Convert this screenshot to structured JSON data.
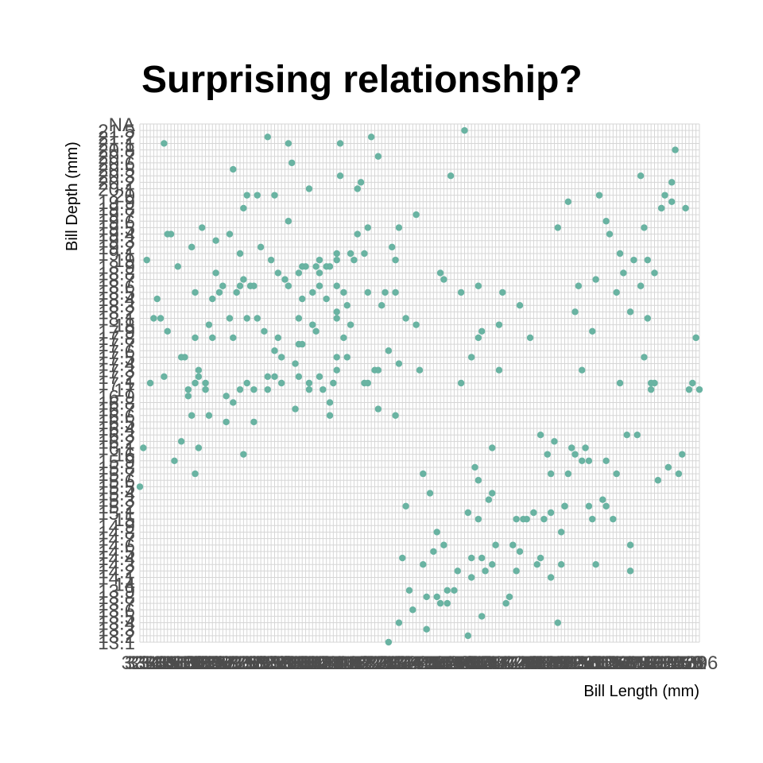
{
  "chart_data": {
    "type": "scatter",
    "title": "Surprising relationship?",
    "xlabel": "Bill Length (mm)",
    "ylabel": "Bill Depth (mm)",
    "point_color": "#69b3a2",
    "grid": "on",
    "x_axis_note": "discrete axis, one gridline per distinct bill length; labels overlap and are unreadable",
    "y_axis_note": "discrete axis, one gridline per distinct bill depth; labels overlap",
    "xlim": [
      32.1,
      59.6
    ],
    "y_ticks": [
      "13.1",
      "13.2",
      "13.3",
      "13.4",
      "13.5",
      "13.6",
      "13.7",
      "13.8",
      "13.9",
      "14",
      "14.1",
      "14.2",
      "14.3",
      "14.4",
      "14.5",
      "14.6",
      "14.7",
      "14.8",
      "14.9",
      "15",
      "15.1",
      "15.2",
      "15.3",
      "15.4",
      "15.5",
      "15.6",
      "15.7",
      "15.8",
      "15.9",
      "16",
      "16.1",
      "16.2",
      "16.3",
      "16.4",
      "16.5",
      "16.6",
      "16.7",
      "16.8",
      "16.9",
      "17",
      "17.1",
      "17.2",
      "17.3",
      "17.4",
      "17.5",
      "17.6",
      "17.7",
      "17.8",
      "17.9",
      "18",
      "18.1",
      "18.2",
      "18.3",
      "18.4",
      "18.5",
      "18.6",
      "18.7",
      "18.8",
      "18.9",
      "19",
      "19.1",
      "19.2",
      "19.3",
      "19.4",
      "19.5",
      "19.6",
      "19.7",
      "19.8",
      "19.9",
      "20",
      "20.1",
      "20.2",
      "20.3",
      "20.5",
      "20.6",
      "20.7",
      "20.8",
      "21.1",
      "21.2",
      "21.5",
      "NA"
    ],
    "x_tick_first": "32.1",
    "x_tick_last": "59.6",
    "points": [
      [
        32.1,
        15.5
      ],
      [
        33.1,
        16.1
      ],
      [
        33.5,
        19.0
      ],
      [
        34.0,
        17.1
      ],
      [
        34.1,
        18.1
      ],
      [
        34.4,
        18.4
      ],
      [
        34.5,
        18.1
      ],
      [
        34.6,
        21.1
      ],
      [
        34.6,
        17.2
      ],
      [
        35.0,
        17.9
      ],
      [
        35.0,
        19.4
      ],
      [
        35.1,
        19.4
      ],
      [
        35.2,
        15.9
      ],
      [
        35.3,
        18.9
      ],
      [
        35.5,
        16.2
      ],
      [
        35.5,
        17.5
      ],
      [
        35.6,
        17.5
      ],
      [
        35.7,
        16.9
      ],
      [
        35.7,
        17.0
      ],
      [
        35.9,
        16.6
      ],
      [
        35.9,
        19.2
      ],
      [
        36.0,
        15.7
      ],
      [
        36.0,
        17.1
      ],
      [
        36.0,
        17.8
      ],
      [
        36.0,
        18.5
      ],
      [
        36.2,
        16.1
      ],
      [
        36.2,
        17.2
      ],
      [
        36.2,
        17.3
      ],
      [
        36.3,
        19.5
      ],
      [
        36.4,
        17.0
      ],
      [
        36.4,
        17.1
      ],
      [
        36.5,
        16.6
      ],
      [
        36.5,
        18.0
      ],
      [
        36.6,
        17.8
      ],
      [
        36.6,
        18.4
      ],
      [
        36.7,
        18.8
      ],
      [
        36.7,
        19.3
      ],
      [
        36.8,
        18.5
      ],
      [
        36.9,
        18.6
      ],
      [
        37.0,
        16.5
      ],
      [
        37.0,
        16.9
      ],
      [
        37.2,
        18.1
      ],
      [
        37.2,
        19.4
      ],
      [
        37.3,
        16.8
      ],
      [
        37.3,
        17.8
      ],
      [
        37.3,
        20.5
      ],
      [
        37.5,
        18.5
      ],
      [
        37.6,
        17.0
      ],
      [
        37.6,
        18.6
      ],
      [
        37.6,
        19.1
      ],
      [
        37.7,
        16.0
      ],
      [
        37.7,
        18.7
      ],
      [
        37.7,
        19.8
      ],
      [
        37.8,
        17.1
      ],
      [
        37.8,
        18.1
      ],
      [
        37.8,
        20.0
      ],
      [
        37.9,
        18.6
      ],
      [
        38.1,
        16.5
      ],
      [
        38.1,
        17.0
      ],
      [
        38.1,
        18.6
      ],
      [
        38.2,
        18.1
      ],
      [
        38.2,
        20.0
      ],
      [
        38.3,
        19.2
      ],
      [
        38.5,
        17.9
      ],
      [
        38.6,
        17.0
      ],
      [
        38.6,
        17.2
      ],
      [
        38.6,
        21.2
      ],
      [
        38.7,
        19.0
      ],
      [
        38.8,
        17.2
      ],
      [
        38.8,
        17.6
      ],
      [
        38.8,
        20.0
      ],
      [
        38.9,
        17.8
      ],
      [
        38.9,
        18.8
      ],
      [
        39.0,
        17.1
      ],
      [
        39.0,
        17.5
      ],
      [
        39.1,
        18.7
      ],
      [
        39.2,
        18.6
      ],
      [
        39.2,
        19.6
      ],
      [
        39.2,
        21.1
      ],
      [
        39.3,
        20.6
      ],
      [
        39.5,
        16.7
      ],
      [
        39.5,
        17.4
      ],
      [
        39.6,
        17.2
      ],
      [
        39.6,
        17.7
      ],
      [
        39.6,
        18.1
      ],
      [
        39.6,
        18.8
      ],
      [
        39.7,
        17.7
      ],
      [
        39.7,
        18.4
      ],
      [
        39.7,
        18.9
      ],
      [
        40.1,
        18.9
      ],
      [
        40.2,
        17.0
      ],
      [
        40.2,
        17.1
      ],
      [
        40.2,
        20.1
      ],
      [
        40.3,
        18.0
      ],
      [
        40.3,
        18.5
      ],
      [
        40.5,
        17.9
      ],
      [
        40.5,
        18.9
      ],
      [
        40.6,
        17.2
      ],
      [
        40.6,
        18.6
      ],
      [
        40.6,
        18.8
      ],
      [
        40.6,
        19.0
      ],
      [
        40.7,
        17.0
      ],
      [
        40.8,
        18.4
      ],
      [
        40.8,
        18.9
      ],
      [
        40.9,
        16.6
      ],
      [
        40.9,
        16.8
      ],
      [
        40.9,
        18.9
      ],
      [
        41.0,
        17.1
      ],
      [
        41.1,
        17.3
      ],
      [
        41.1,
        17.5
      ],
      [
        41.1,
        18.1
      ],
      [
        41.1,
        18.2
      ],
      [
        41.1,
        18.6
      ],
      [
        41.1,
        19.0
      ],
      [
        41.1,
        19.1
      ],
      [
        41.3,
        20.3
      ],
      [
        41.3,
        21.1
      ],
      [
        41.4,
        17.8
      ],
      [
        41.4,
        18.5
      ],
      [
        41.5,
        17.5
      ],
      [
        41.5,
        18.3
      ],
      [
        41.6,
        18.0
      ],
      [
        41.6,
        19.1
      ],
      [
        41.7,
        19.0
      ],
      [
        41.8,
        19.4
      ],
      [
        41.8,
        20.1
      ],
      [
        42.0,
        20.2
      ],
      [
        42.1,
        17.1
      ],
      [
        42.1,
        19.1
      ],
      [
        42.2,
        17.1
      ],
      [
        42.2,
        18.5
      ],
      [
        42.2,
        19.5
      ],
      [
        42.3,
        21.2
      ],
      [
        42.4,
        17.3
      ],
      [
        42.5,
        16.7
      ],
      [
        42.5,
        17.3
      ],
      [
        42.5,
        20.7
      ],
      [
        42.7,
        18.3
      ],
      [
        42.8,
        18.5
      ],
      [
        42.9,
        17.6
      ],
      [
        42.9,
        13.1
      ],
      [
        43.1,
        19.2
      ],
      [
        43.2,
        16.6
      ],
      [
        43.2,
        18.5
      ],
      [
        43.2,
        19.0
      ],
      [
        43.3,
        13.4
      ],
      [
        43.3,
        17.4
      ],
      [
        43.3,
        19.5
      ],
      [
        43.4,
        14.4
      ],
      [
        43.5,
        15.2
      ],
      [
        43.5,
        18.1
      ],
      [
        43.6,
        13.9
      ],
      [
        44.0,
        13.6
      ],
      [
        44.1,
        18.0
      ],
      [
        44.1,
        19.7
      ],
      [
        44.4,
        17.3
      ],
      [
        44.5,
        14.3
      ],
      [
        44.5,
        15.7
      ],
      [
        44.9,
        13.3
      ],
      [
        44.9,
        13.8
      ],
      [
        45.0,
        15.4
      ],
      [
        45.1,
        14.5
      ],
      [
        45.2,
        13.8
      ],
      [
        45.2,
        14.8
      ],
      [
        45.3,
        13.7
      ],
      [
        45.4,
        14.6
      ],
      [
        45.4,
        18.7
      ],
      [
        45.5,
        13.7
      ],
      [
        45.5,
        13.9
      ],
      [
        45.6,
        20.3
      ],
      [
        45.7,
        13.9
      ],
      [
        45.8,
        14.2
      ],
      [
        45.9,
        17.1
      ],
      [
        46.1,
        13.2
      ],
      [
        46.1,
        15.1
      ],
      [
        46.2,
        14.1
      ],
      [
        46.2,
        14.4
      ],
      [
        46.2,
        17.5
      ],
      [
        46.3,
        15.8
      ],
      [
        46.4,
        15.0
      ],
      [
        46.4,
        15.6
      ],
      [
        46.4,
        17.8
      ],
      [
        46.5,
        14.4
      ],
      [
        46.5,
        13.5
      ],
      [
        46.5,
        17.9
      ],
      [
        46.6,
        14.2
      ],
      [
        46.7,
        15.3
      ],
      [
        46.8,
        14.3
      ],
      [
        46.8,
        15.4
      ],
      [
        46.8,
        16.1
      ],
      [
        46.9,
        14.6
      ],
      [
        47.0,
        17.3
      ],
      [
        47.2,
        13.7
      ],
      [
        47.3,
        13.8
      ],
      [
        47.4,
        14.6
      ],
      [
        47.5,
        14.2
      ],
      [
        47.5,
        15.0
      ],
      [
        47.6,
        14.5
      ],
      [
        47.7,
        15.0
      ],
      [
        47.8,
        15.0
      ],
      [
        48.1,
        15.1
      ],
      [
        48.2,
        14.3
      ],
      [
        48.4,
        14.4
      ],
      [
        48.4,
        16.3
      ],
      [
        48.5,
        15.0
      ],
      [
        48.7,
        14.1
      ],
      [
        48.7,
        15.1
      ],
      [
        48.7,
        15.7
      ],
      [
        48.8,
        16.2
      ],
      [
        49.0,
        13.4
      ],
      [
        49.1,
        14.3
      ],
      [
        49.1,
        14.8
      ],
      [
        49.2,
        15.2
      ],
      [
        49.3,
        15.7
      ],
      [
        49.5,
        16.1
      ],
      [
        49.6,
        16.0
      ],
      [
        49.6,
        18.2
      ],
      [
        49.8,
        15.9
      ],
      [
        49.9,
        16.1
      ],
      [
        50.0,
        15.2
      ],
      [
        50.0,
        15.9
      ],
      [
        50.1,
        15.0
      ],
      [
        50.2,
        14.3
      ],
      [
        50.4,
        15.3
      ],
      [
        50.5,
        15.2
      ],
      [
        50.5,
        15.9
      ],
      [
        50.7,
        15.0
      ],
      [
        50.8,
        15.7
      ],
      [
        50.9,
        17.1
      ],
      [
        51.1,
        16.3
      ],
      [
        51.3,
        14.2
      ],
      [
        51.3,
        14.6
      ],
      [
        51.5,
        16.3
      ],
      [
        51.7,
        18.6
      ],
      [
        52.1,
        17.0
      ],
      [
        52.1,
        17.1
      ],
      [
        52.2,
        17.1
      ],
      [
        52.5,
        15.6
      ],
      [
        52.7,
        19.8
      ],
      [
        53.4,
        15.8
      ],
      [
        54.3,
        15.7
      ],
      [
        55.1,
        16.0
      ],
      [
        55.9,
        17.0
      ],
      [
        56.0,
        17.1
      ],
      [
        58.0,
        17.8
      ],
      [
        59.6,
        17.0
      ],
      [
        45.3,
        18.8
      ],
      [
        45.9,
        18.5
      ],
      [
        46.4,
        18.6
      ],
      [
        47.0,
        18.0
      ],
      [
        47.1,
        18.5
      ],
      [
        48.0,
        17.8
      ],
      [
        49.0,
        19.5
      ],
      [
        49.3,
        19.9
      ],
      [
        49.7,
        18.6
      ],
      [
        50.2,
        18.7
      ],
      [
        50.3,
        20.0
      ],
      [
        50.5,
        19.6
      ],
      [
        50.6,
        19.4
      ],
      [
        50.8,
        18.5
      ],
      [
        51.0,
        18.8
      ],
      [
        51.3,
        18.2
      ],
      [
        51.4,
        19.0
      ],
      [
        51.9,
        19.5
      ],
      [
        52.0,
        18.1
      ],
      [
        52.0,
        19.0
      ],
      [
        52.2,
        18.8
      ],
      [
        52.7,
        19.8
      ],
      [
        52.8,
        20.0
      ],
      [
        53.5,
        19.9
      ],
      [
        54.2,
        20.8
      ],
      [
        55.8,
        19.8
      ],
      [
        58.0,
        17.8
      ],
      [
        46.0,
        21.5
      ],
      [
        49.2,
        15.2
      ],
      [
        50.1,
        17.9
      ],
      [
        51.7,
        20.3
      ],
      [
        48.6,
        16.0
      ],
      [
        47.6,
        18.3
      ],
      [
        50.9,
        19.1
      ],
      [
        51.9,
        17.5
      ],
      [
        49.8,
        17.3
      ],
      [
        53.5,
        20.2
      ]
    ]
  }
}
